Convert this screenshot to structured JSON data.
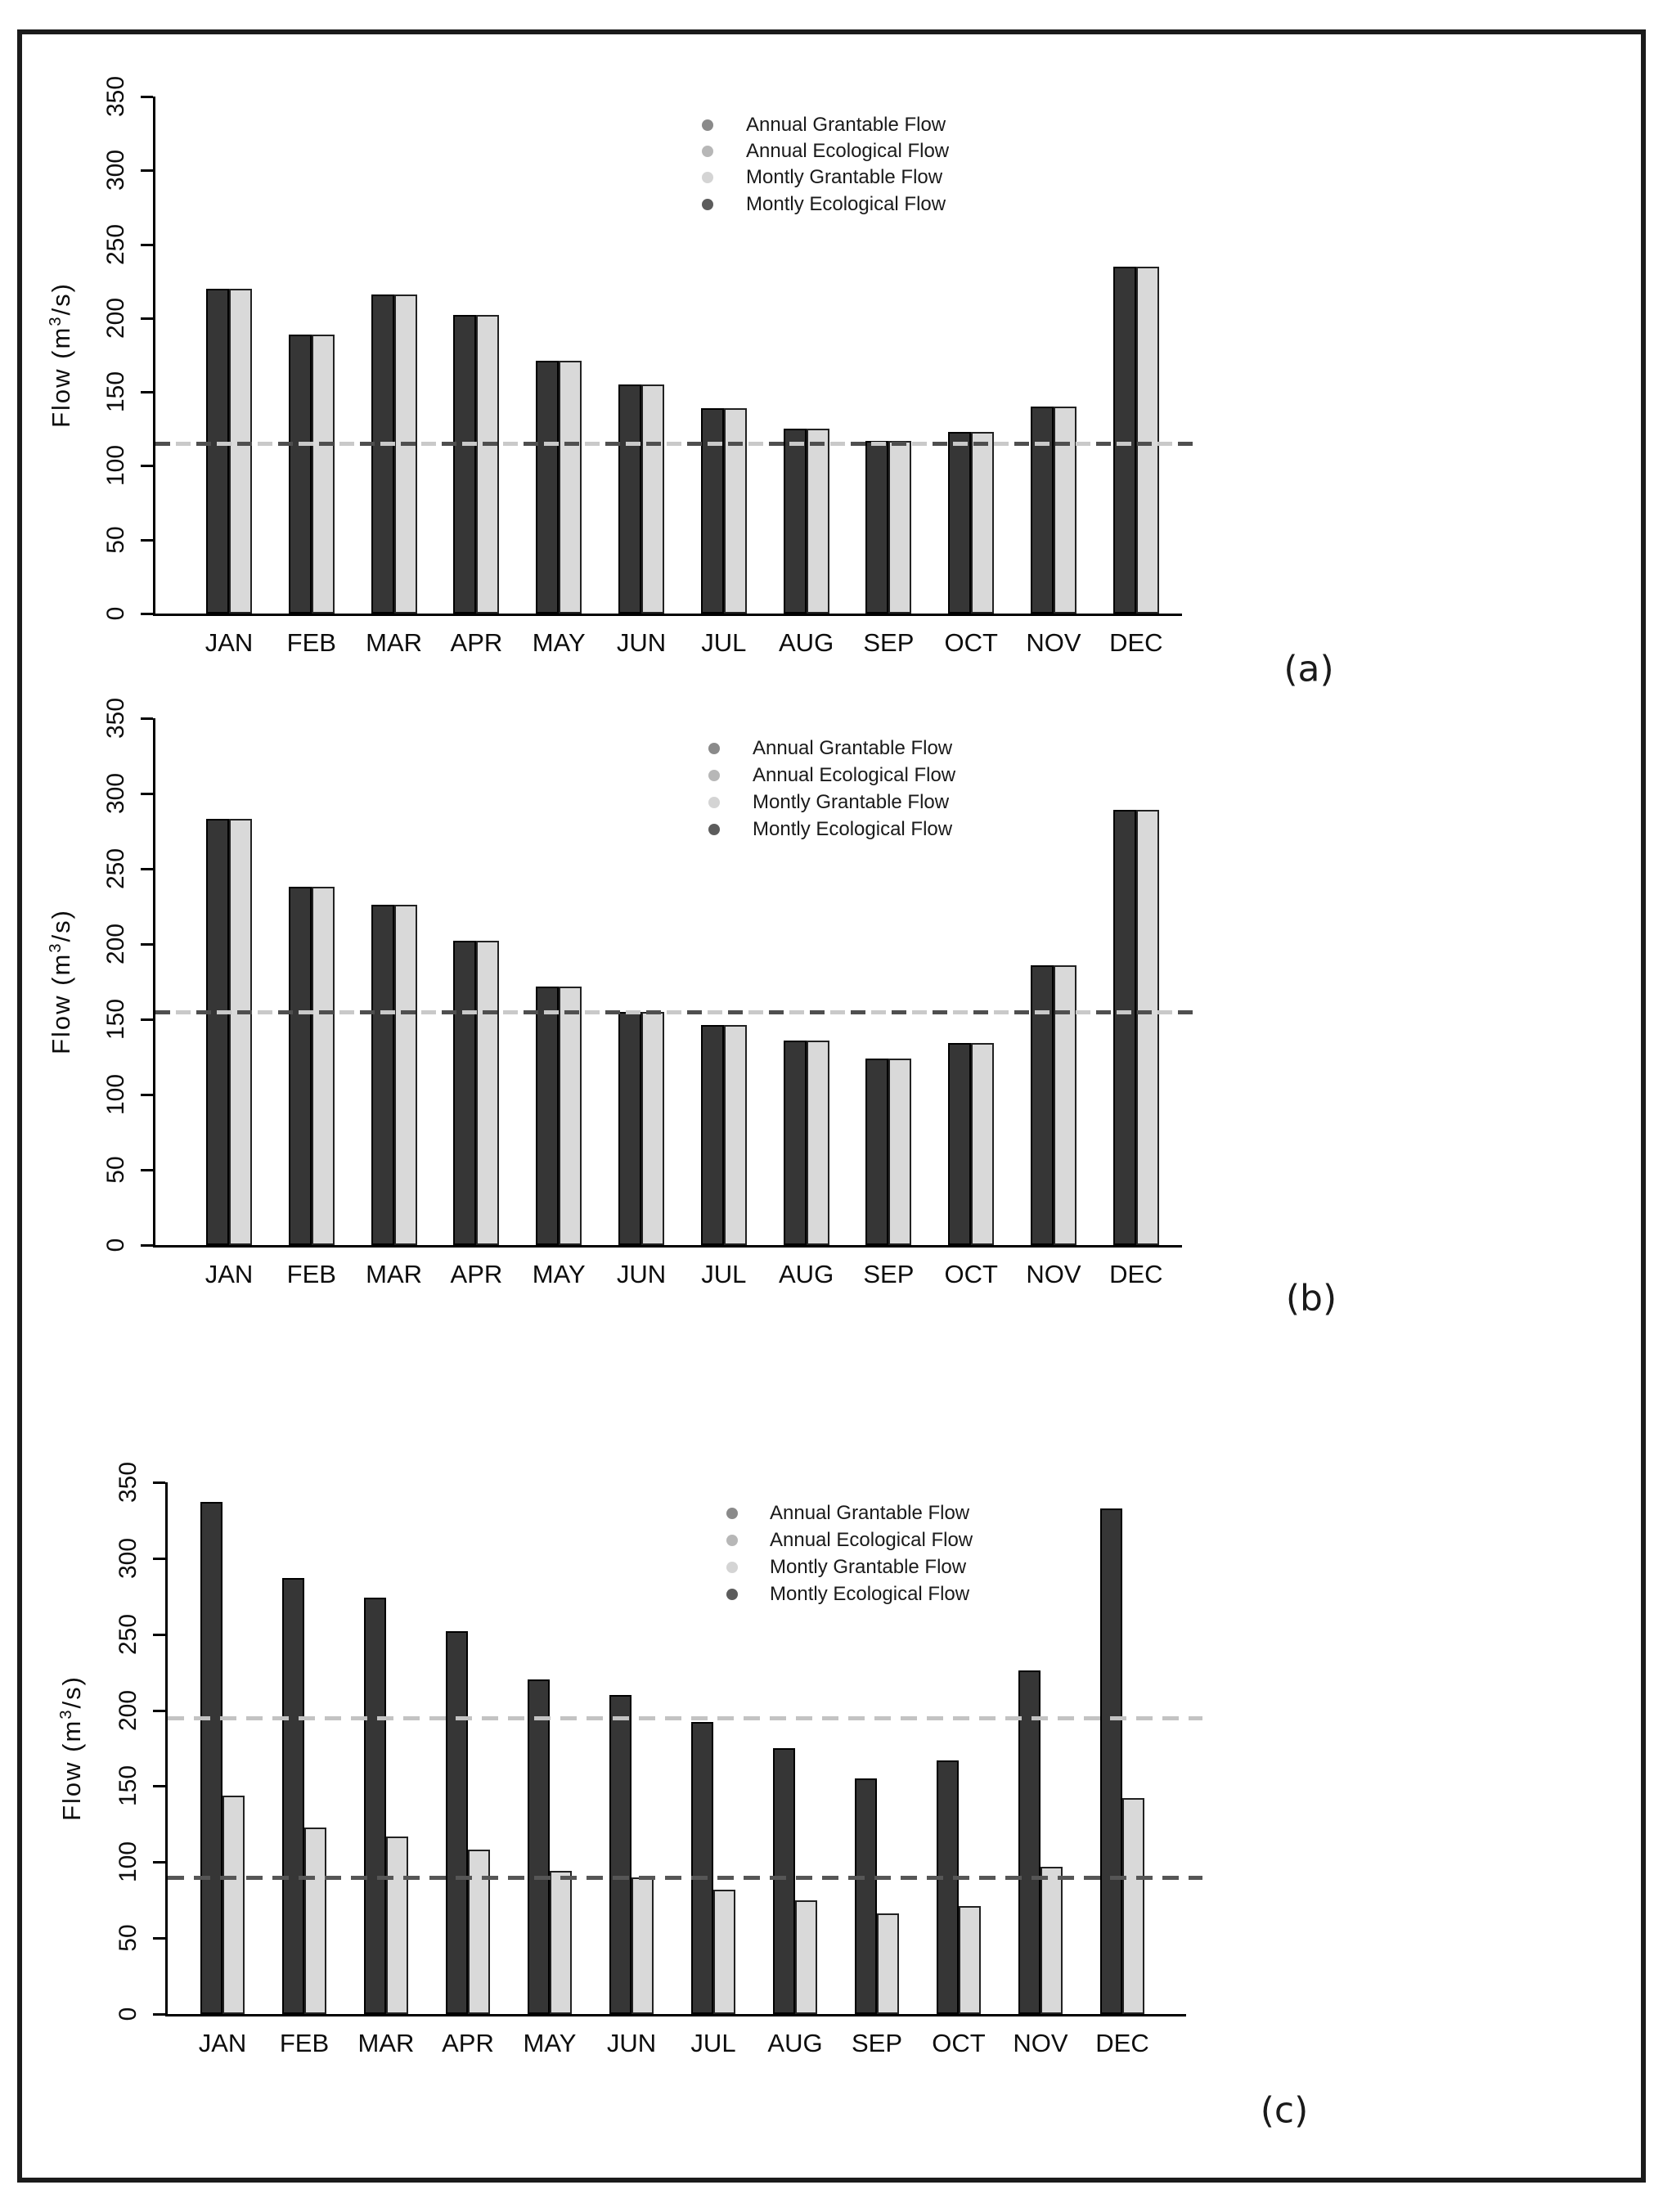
{
  "figure": {
    "border_color": "#1b1b1b",
    "months": [
      "JAN",
      "FEB",
      "MAR",
      "APR",
      "MAY",
      "JUN",
      "JUL",
      "AUG",
      "SEP",
      "OCT",
      "NOV",
      "DEC"
    ],
    "yticks": [
      0,
      50,
      100,
      150,
      200,
      250,
      300,
      350
    ],
    "ylabel": {
      "pre": "Flow (m",
      "sup": "3",
      "post": "/s)"
    },
    "bar_colors": {
      "dark": "#363636",
      "light": "#d9d9d9"
    },
    "legend_dot_colors": [
      "#8a8a8a",
      "#b7b7b7",
      "#d4d4d4",
      "#5c5c5c"
    ],
    "legend_labels": [
      "Annual Grantable Flow",
      "Annual Ecological Flow",
      "Montly Grantable Flow",
      "Montly Ecological Flow"
    ],
    "panels": [
      {
        "caption": "(a)",
        "bars_dark": [
          220,
          189,
          216,
          202,
          171,
          155,
          139,
          125,
          117,
          123,
          140,
          235
        ],
        "bars_light": [
          220,
          189,
          216,
          202,
          171,
          155,
          139,
          125,
          117,
          123,
          140,
          235
        ],
        "dashed": [
          {
            "value": 115,
            "kind": "dual"
          }
        ]
      },
      {
        "caption": "(b)",
        "bars_dark": [
          283,
          238,
          226,
          202,
          172,
          155,
          146,
          136,
          124,
          134,
          186,
          289
        ],
        "bars_light": [
          283,
          238,
          226,
          202,
          172,
          155,
          146,
          136,
          124,
          134,
          186,
          289
        ],
        "dashed": [
          {
            "value": 155,
            "kind": "dual"
          }
        ]
      },
      {
        "caption": "(c)",
        "bars_dark": [
          337,
          287,
          274,
          252,
          220,
          210,
          192,
          175,
          155,
          167,
          226,
          333
        ],
        "bars_light": [
          144,
          123,
          117,
          108,
          94,
          90,
          82,
          75,
          66,
          71,
          97,
          142
        ],
        "dashed": [
          {
            "value": 195,
            "kind": "light"
          },
          {
            "value": 90,
            "kind": "dark"
          }
        ]
      }
    ]
  },
  "chart_data": [
    {
      "type": "bar",
      "title": "(a)",
      "categories": [
        "JAN",
        "FEB",
        "MAR",
        "APR",
        "MAY",
        "JUN",
        "JUL",
        "AUG",
        "SEP",
        "OCT",
        "NOV",
        "DEC"
      ],
      "series": [
        {
          "name": "Montly Ecological Flow (dark bars)",
          "values": [
            220,
            189,
            216,
            202,
            171,
            155,
            139,
            125,
            117,
            123,
            140,
            235
          ]
        },
        {
          "name": "Montly Grantable Flow (light bars)",
          "values": [
            220,
            189,
            216,
            202,
            171,
            155,
            139,
            125,
            117,
            123,
            140,
            235
          ]
        }
      ],
      "hlines": [
        {
          "label": "Annual flow (dark dashes)",
          "value": 115,
          "color": "#4f4f4f"
        },
        {
          "label": "Annual flow (light dashes)",
          "value": 115,
          "color": "#c9c9c9"
        }
      ],
      "legend_entries": [
        "Annual Grantable Flow",
        "Annual Ecological Flow",
        "Montly Grantable Flow",
        "Montly Ecological Flow"
      ],
      "xlabel": "",
      "ylabel": "Flow (m3/s)",
      "ylim": [
        0,
        350
      ],
      "grid": false,
      "legend_position": "upper right"
    },
    {
      "type": "bar",
      "title": "(b)",
      "categories": [
        "JAN",
        "FEB",
        "MAR",
        "APR",
        "MAY",
        "JUN",
        "JUL",
        "AUG",
        "SEP",
        "OCT",
        "NOV",
        "DEC"
      ],
      "series": [
        {
          "name": "Montly Ecological Flow (dark bars)",
          "values": [
            283,
            238,
            226,
            202,
            172,
            155,
            146,
            136,
            124,
            134,
            186,
            289
          ]
        },
        {
          "name": "Montly Grantable Flow (light bars)",
          "values": [
            283,
            238,
            226,
            202,
            172,
            155,
            146,
            136,
            124,
            134,
            186,
            289
          ]
        }
      ],
      "hlines": [
        {
          "label": "Annual flow (dark dashes)",
          "value": 155,
          "color": "#4f4f4f"
        },
        {
          "label": "Annual flow (light dashes)",
          "value": 155,
          "color": "#c9c9c9"
        }
      ],
      "legend_entries": [
        "Annual Grantable Flow",
        "Annual Ecological Flow",
        "Montly Grantable Flow",
        "Montly Ecological Flow"
      ],
      "xlabel": "",
      "ylabel": "Flow (m3/s)",
      "ylim": [
        0,
        350
      ],
      "grid": false,
      "legend_position": "upper right"
    },
    {
      "type": "bar",
      "title": "(c)",
      "categories": [
        "JAN",
        "FEB",
        "MAR",
        "APR",
        "MAY",
        "JUN",
        "JUL",
        "AUG",
        "SEP",
        "OCT",
        "NOV",
        "DEC"
      ],
      "series": [
        {
          "name": "Montly Ecological Flow (dark bars)",
          "values": [
            337,
            287,
            274,
            252,
            220,
            210,
            192,
            175,
            155,
            167,
            226,
            333
          ]
        },
        {
          "name": "Montly Grantable Flow (light bars)",
          "values": [
            144,
            123,
            117,
            108,
            94,
            90,
            82,
            75,
            66,
            71,
            97,
            142
          ]
        }
      ],
      "hlines": [
        {
          "label": "Annual flow (light dashes)",
          "value": 195,
          "color": "#c3c3c3"
        },
        {
          "label": "Annual flow (dark dashes)",
          "value": 90,
          "color": "#565656"
        }
      ],
      "legend_entries": [
        "Annual Grantable Flow",
        "Annual Ecological Flow",
        "Montly Grantable Flow",
        "Montly Ecological Flow"
      ],
      "xlabel": "",
      "ylabel": "Flow (m3/s)",
      "ylim": [
        0,
        350
      ],
      "grid": false,
      "legend_position": "upper right"
    }
  ]
}
